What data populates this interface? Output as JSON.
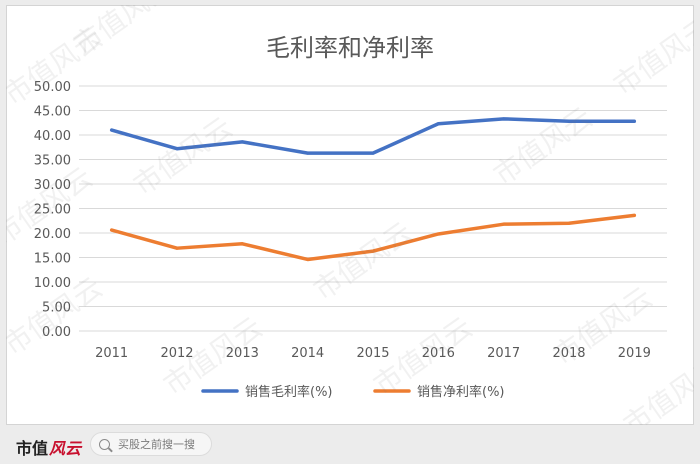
{
  "chart_data": {
    "type": "line",
    "title": "毛利率和净利率",
    "categories": [
      "2011",
      "2012",
      "2013",
      "2014",
      "2015",
      "2016",
      "2017",
      "2018",
      "2019"
    ],
    "ylim": [
      0,
      50
    ],
    "y_ticks": [
      "0.00",
      "5.00",
      "10.00",
      "15.00",
      "20.00",
      "25.00",
      "30.00",
      "35.00",
      "40.00",
      "45.00",
      "50.00"
    ],
    "grid": true,
    "legend_position": "bottom",
    "series": [
      {
        "name": "销售毛利率(%)",
        "color": "#4472c4",
        "values": [
          41.0,
          37.2,
          38.6,
          36.3,
          36.3,
          42.3,
          43.3,
          42.8,
          42.8
        ]
      },
      {
        "name": "销售净利率(%)",
        "color": "#ed7d31",
        "values": [
          20.6,
          16.9,
          17.8,
          14.6,
          16.3,
          19.8,
          21.8,
          22.0,
          23.6
        ]
      }
    ]
  },
  "watermark": "市值风云",
  "footer": {
    "brand_main": "市值",
    "brand_script": "风云",
    "search_placeholder": "买股之前搜一搜"
  }
}
